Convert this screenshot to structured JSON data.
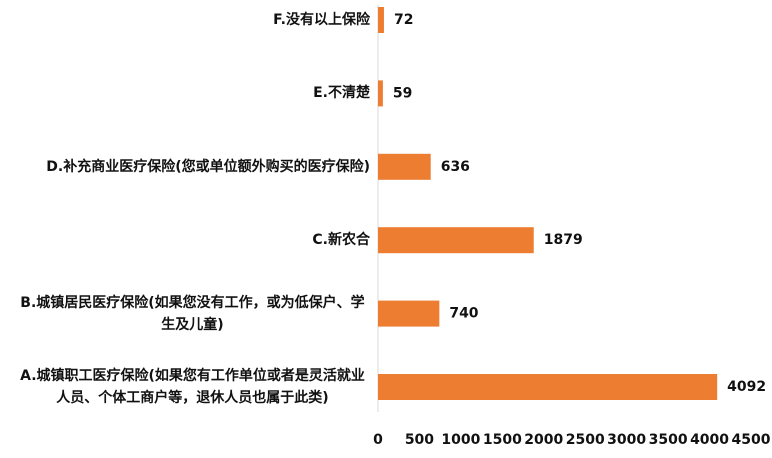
{
  "chart_data": {
    "type": "bar",
    "orientation": "horizontal",
    "categories": [
      "A.城镇职工医疗保险(如果您有工作单位或者是灵活就业人员、个体工商户等，退休人员也属于此类)",
      "B.城镇居民医疗保险(如果您没有工作，或为低保户、学生及儿童)",
      "C.新农合",
      "D.补充商业医疗保险(您或单位额外购买的医疗保险)",
      "E.不清楚",
      "F.没有以上保险"
    ],
    "values": [
      4092,
      740,
      1879,
      636,
      59,
      72
    ],
    "color": "#ed7d31",
    "xlim": [
      0,
      4500
    ],
    "xticks": [
      0,
      500,
      1000,
      1500,
      2000,
      2500,
      3000,
      3500,
      4000,
      4500
    ],
    "grid": false
  }
}
